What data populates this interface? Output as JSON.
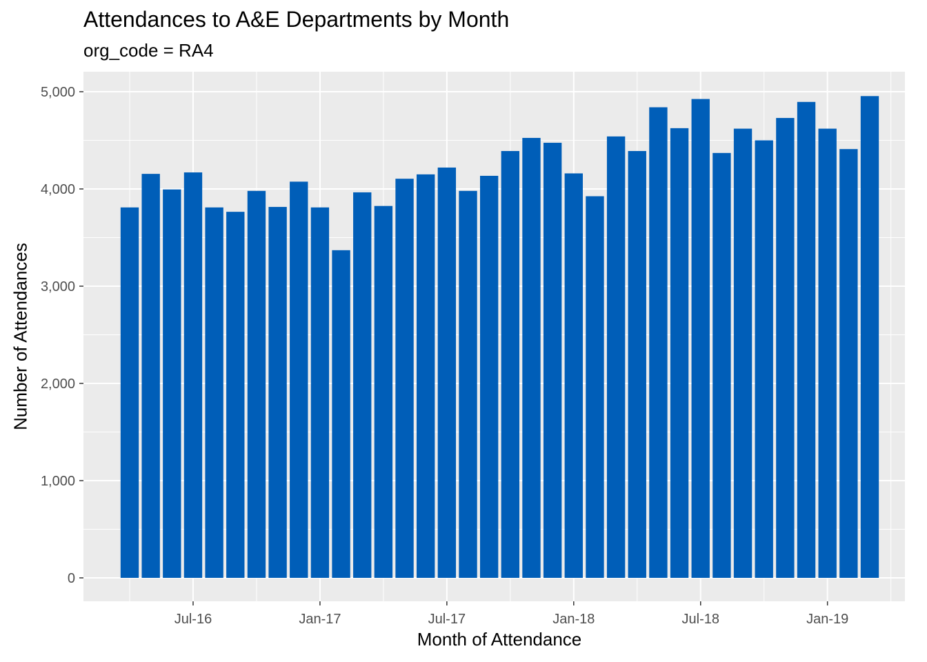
{
  "chart_data": {
    "type": "bar",
    "title": "Attendances to A&E Departments by Month",
    "subtitle": "org_code = RA4",
    "xlabel": "Month of Attendance",
    "ylabel": "Number of Attendances",
    "categories": [
      "Apr-16",
      "May-16",
      "Jun-16",
      "Jul-16",
      "Aug-16",
      "Sep-16",
      "Oct-16",
      "Nov-16",
      "Dec-16",
      "Jan-17",
      "Feb-17",
      "Mar-17",
      "Apr-17",
      "May-17",
      "Jun-17",
      "Jul-17",
      "Aug-17",
      "Sep-17",
      "Oct-17",
      "Nov-17",
      "Dec-17",
      "Jan-18",
      "Feb-18",
      "Mar-18",
      "Apr-18",
      "May-18",
      "Jun-18",
      "Jul-18",
      "Aug-18",
      "Sep-18",
      "Oct-18",
      "Nov-18",
      "Dec-18",
      "Jan-19",
      "Feb-19",
      "Mar-19"
    ],
    "values": [
      3810,
      4155,
      3995,
      4170,
      3810,
      3765,
      3980,
      3815,
      4075,
      3810,
      3370,
      3965,
      3825,
      4105,
      4150,
      4220,
      3980,
      4135,
      4390,
      4525,
      4475,
      4160,
      3925,
      4540,
      4390,
      4840,
      4625,
      4925,
      4370,
      4620,
      4500,
      4730,
      4895,
      4620,
      4410,
      4955
    ],
    "x_tick_labels": [
      {
        "label": "Jul-16",
        "month_index": 3
      },
      {
        "label": "Jan-17",
        "month_index": 9
      },
      {
        "label": "Jul-17",
        "month_index": 15
      },
      {
        "label": "Jan-18",
        "month_index": 21
      },
      {
        "label": "Jul-18",
        "month_index": 27
      },
      {
        "label": "Jan-19",
        "month_index": 33
      }
    ],
    "y_ticks": [
      0,
      1000,
      2000,
      3000,
      4000,
      5000
    ],
    "y_tick_labels": [
      "0",
      "1,000",
      "2,000",
      "3,000",
      "4,000",
      "5,000"
    ],
    "ylim": [
      0,
      5200
    ],
    "grid": true,
    "bar_color": "#005EB8",
    "panel_background": "#EBEBEB",
    "gridline_color": "#FFFFFF"
  }
}
